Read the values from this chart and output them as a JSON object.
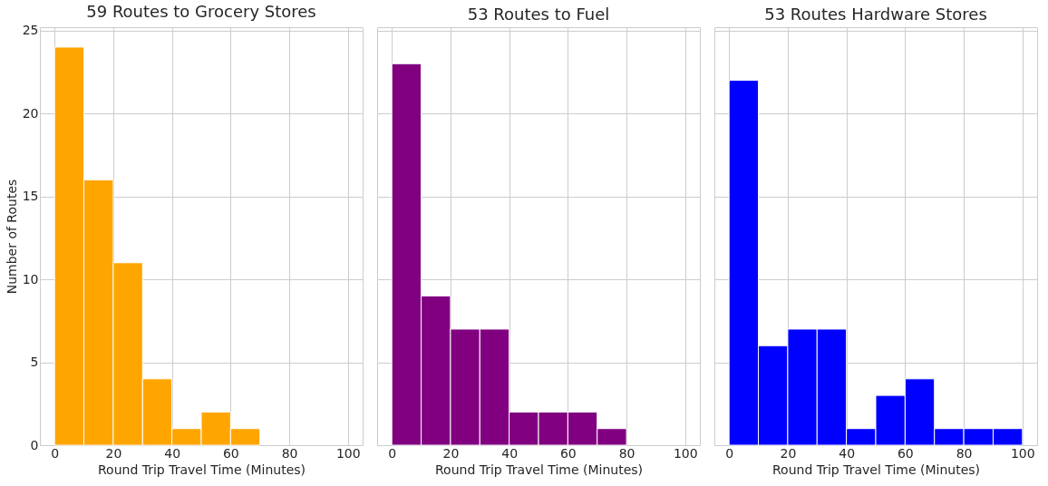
{
  "chart_data": [
    {
      "type": "histogram",
      "title": "59 Routes to Grocery Stores",
      "xlabel": "Round Trip Travel Time (Minutes)",
      "ylabel": "Number of Routes",
      "bins": [
        0,
        10,
        20,
        30,
        40,
        50,
        60,
        70
      ],
      "values": [
        24,
        16,
        11,
        4,
        1,
        2,
        1
      ],
      "color": "#ffa500",
      "xlim": [
        -5,
        105
      ],
      "xticks": [
        0,
        20,
        40,
        60,
        80,
        100
      ],
      "ylim": [
        0,
        25.2
      ],
      "yticks": [
        0,
        5,
        10,
        15,
        20,
        25
      ],
      "grid": true
    },
    {
      "type": "histogram",
      "title": "53 Routes to Fuel",
      "xlabel": "Round Trip Travel Time (Minutes)",
      "bins": [
        0,
        10,
        20,
        30,
        40,
        50,
        60,
        70,
        80
      ],
      "values": [
        23,
        9,
        7,
        7,
        2,
        2,
        2,
        1
      ],
      "color": "#800080",
      "xlim": [
        -5,
        105
      ],
      "xticks": [
        0,
        20,
        40,
        60,
        80,
        100
      ],
      "ylim": [
        0,
        25.2
      ],
      "yticks": [
        0,
        5,
        10,
        15,
        20,
        25
      ],
      "grid": true,
      "tick_labels": "x"
    },
    {
      "type": "histogram",
      "title": "53 Routes Hardware Stores",
      "xlabel": "Round Trip Travel Time (Minutes)",
      "bins": [
        0,
        10,
        20,
        30,
        40,
        50,
        60,
        70,
        80,
        90,
        100
      ],
      "values": [
        22,
        6,
        7,
        7,
        1,
        3,
        4,
        1,
        1,
        1
      ],
      "color": "#0000ff",
      "xlim": [
        -5,
        105
      ],
      "xticks": [
        0,
        20,
        40,
        60,
        80,
        100
      ],
      "ylim": [
        0,
        25.2
      ],
      "yticks": [
        0,
        5,
        10,
        15,
        20,
        25
      ],
      "grid": true,
      "tick_labels": "x"
    }
  ]
}
